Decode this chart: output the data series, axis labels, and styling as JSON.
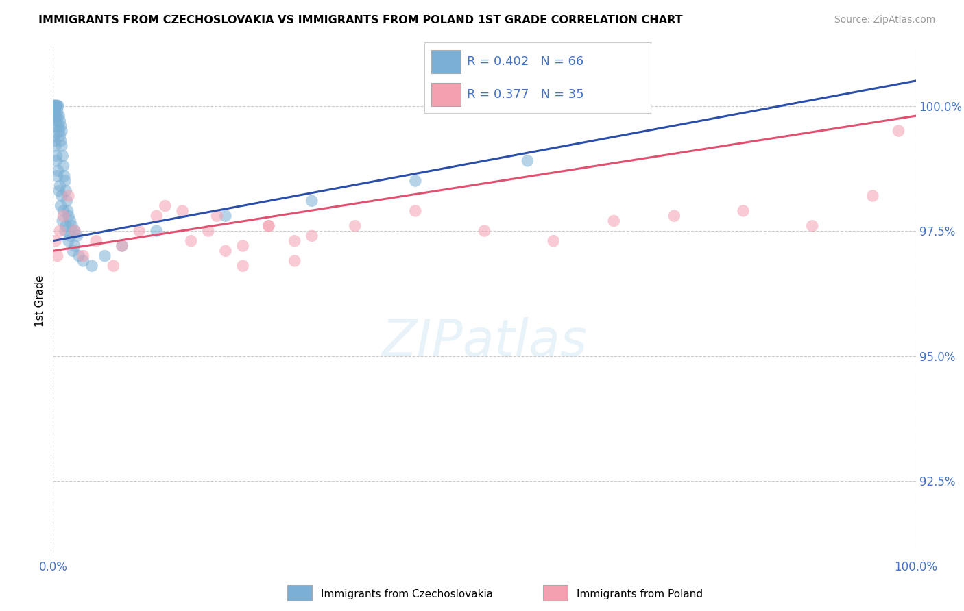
{
  "title": "IMMIGRANTS FROM CZECHOSLOVAKIA VS IMMIGRANTS FROM POLAND 1ST GRADE CORRELATION CHART",
  "source": "Source: ZipAtlas.com",
  "ylabel": "1st Grade",
  "blue_R": 0.402,
  "blue_N": 66,
  "pink_R": 0.377,
  "pink_N": 35,
  "blue_color": "#7bafd4",
  "pink_color": "#f4a0b0",
  "blue_line_color": "#2b4fa8",
  "pink_line_color": "#e05070",
  "xlim": [
    0.0,
    100.0
  ],
  "ylim": [
    91.0,
    101.2
  ],
  "yticks": [
    92.5,
    95.0,
    97.5,
    100.0
  ],
  "legend_blue": "Immigrants from Czechoslovakia",
  "legend_pink": "Immigrants from Poland",
  "blue_scatter_x": [
    0.1,
    0.1,
    0.1,
    0.2,
    0.2,
    0.2,
    0.3,
    0.3,
    0.3,
    0.4,
    0.4,
    0.5,
    0.5,
    0.5,
    0.6,
    0.6,
    0.7,
    0.7,
    0.8,
    0.8,
    0.9,
    0.9,
    1.0,
    1.0,
    1.1,
    1.2,
    1.3,
    1.4,
    1.5,
    1.6,
    1.7,
    1.8,
    2.0,
    2.2,
    2.5,
    2.8,
    0.2,
    0.3,
    0.4,
    0.6,
    0.8,
    1.0,
    1.2,
    1.5,
    2.0,
    2.5,
    3.0,
    0.1,
    0.2,
    0.4,
    0.5,
    0.7,
    0.9,
    1.1,
    1.4,
    1.8,
    2.3,
    3.5,
    4.5,
    6.0,
    8.0,
    12.0,
    20.0,
    30.0,
    42.0,
    55.0
  ],
  "blue_scatter_y": [
    100.0,
    100.0,
    99.8,
    100.0,
    100.0,
    99.9,
    100.0,
    100.0,
    99.8,
    100.0,
    99.7,
    100.0,
    99.9,
    99.8,
    100.0,
    99.6,
    99.8,
    99.5,
    99.7,
    99.4,
    99.6,
    99.3,
    99.5,
    99.2,
    99.0,
    98.8,
    98.6,
    98.5,
    98.3,
    98.1,
    97.9,
    97.8,
    97.7,
    97.6,
    97.5,
    97.4,
    99.4,
    99.2,
    99.0,
    98.7,
    98.4,
    98.2,
    97.9,
    97.6,
    97.4,
    97.2,
    97.0,
    99.6,
    99.3,
    98.9,
    98.6,
    98.3,
    98.0,
    97.7,
    97.5,
    97.3,
    97.1,
    96.9,
    96.8,
    97.0,
    97.2,
    97.5,
    97.8,
    98.1,
    98.5,
    98.9
  ],
  "blue_line_x0": 0.0,
  "blue_line_y0": 97.3,
  "blue_line_x1": 100.0,
  "blue_line_y1": 100.5,
  "pink_scatter_x": [
    0.3,
    0.5,
    0.8,
    1.2,
    1.8,
    2.5,
    3.5,
    5.0,
    7.0,
    10.0,
    13.0,
    16.0,
    19.0,
    22.0,
    25.0,
    28.0,
    30.0,
    15.0,
    20.0,
    25.0,
    8.0,
    12.0,
    18.0,
    22.0,
    28.0,
    35.0,
    42.0,
    50.0,
    58.0,
    65.0,
    72.0,
    80.0,
    88.0,
    95.0,
    98.0
  ],
  "pink_scatter_y": [
    97.3,
    97.0,
    97.5,
    97.8,
    98.2,
    97.5,
    97.0,
    97.3,
    96.8,
    97.5,
    98.0,
    97.3,
    97.8,
    97.2,
    97.6,
    96.9,
    97.4,
    97.9,
    97.1,
    97.6,
    97.2,
    97.8,
    97.5,
    96.8,
    97.3,
    97.6,
    97.9,
    97.5,
    97.3,
    97.7,
    97.8,
    97.9,
    97.6,
    98.2,
    99.5
  ],
  "pink_line_x0": 0.0,
  "pink_line_y0": 97.1,
  "pink_line_x1": 100.0,
  "pink_line_y1": 99.8
}
